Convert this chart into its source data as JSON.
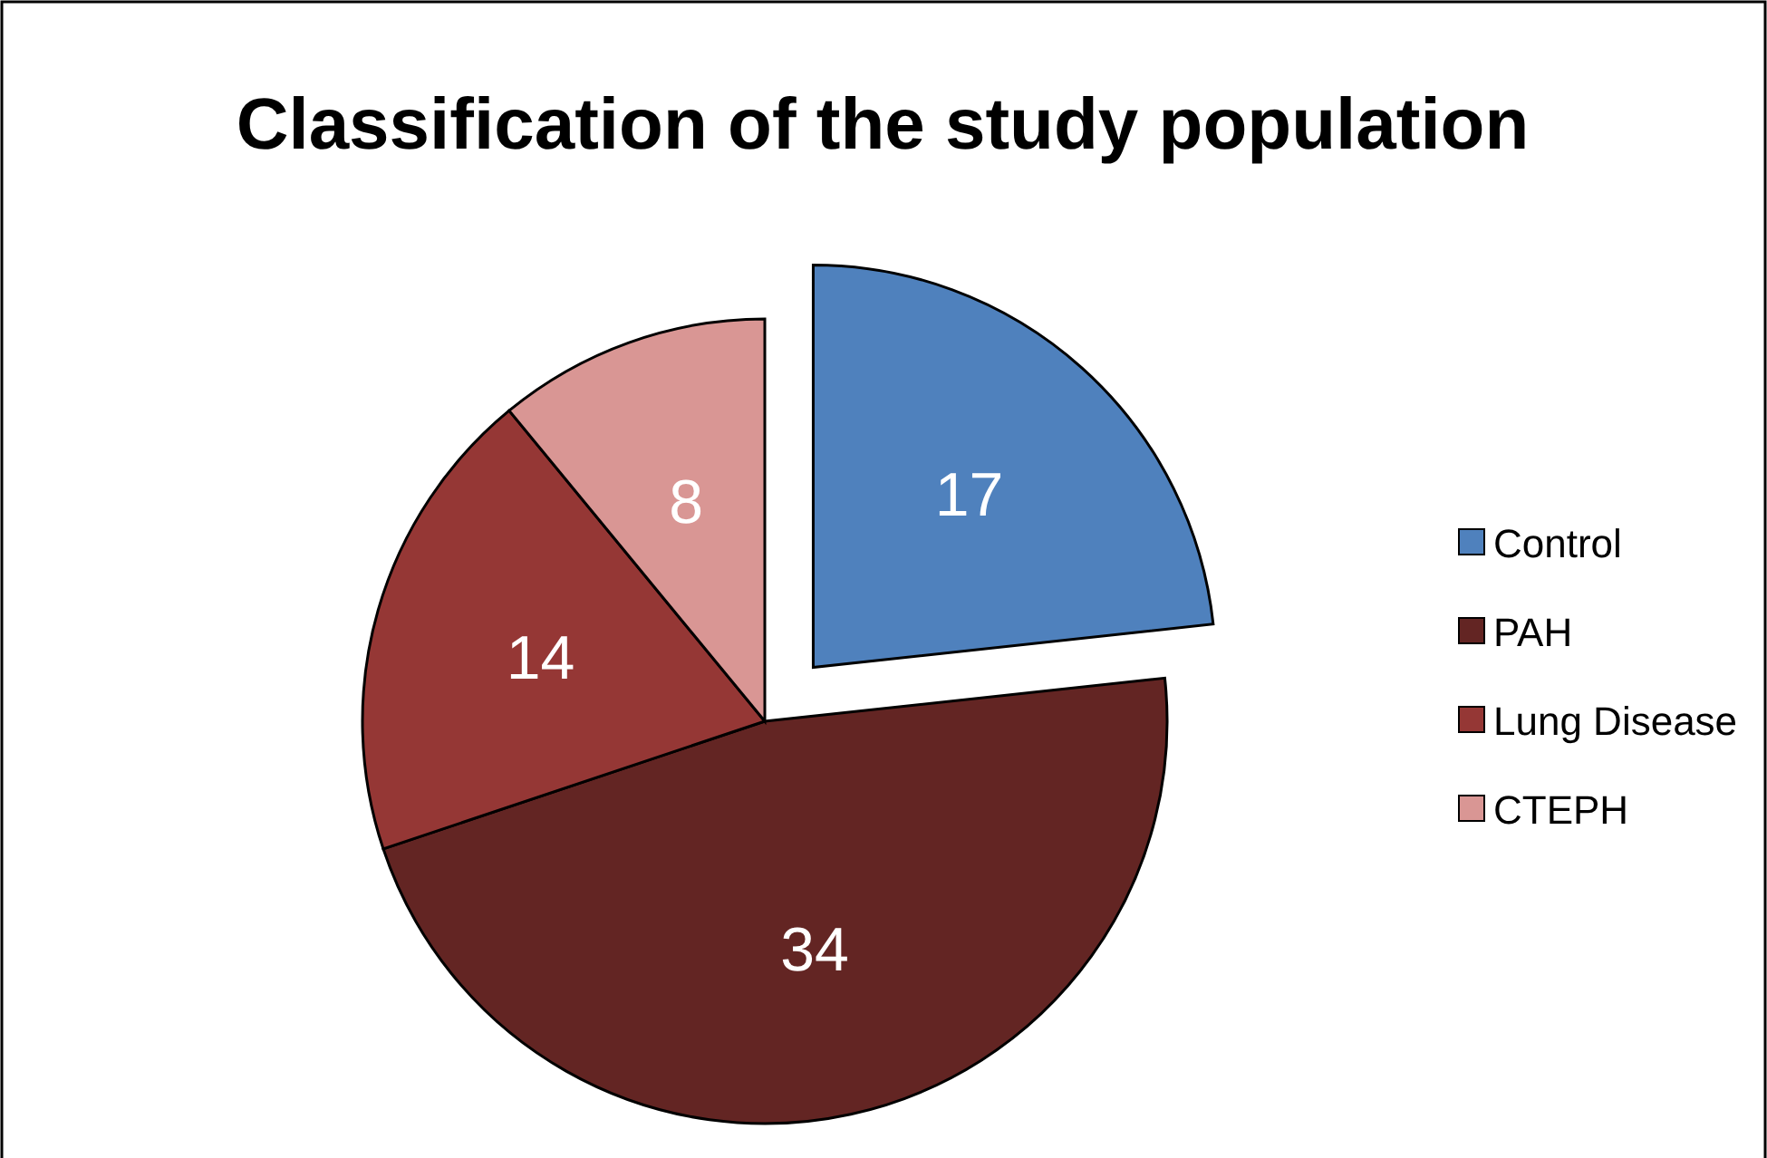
{
  "chart_data": {
    "type": "pie",
    "title": "Classification of the study population",
    "categories": [
      "Control",
      "PAH",
      "Lung Disease",
      "CTEPH"
    ],
    "values": [
      17,
      34,
      14,
      8
    ],
    "colors": [
      "#4f81bd",
      "#632523",
      "#953735",
      "#d99694"
    ],
    "data_labels": true,
    "legend": "right"
  }
}
